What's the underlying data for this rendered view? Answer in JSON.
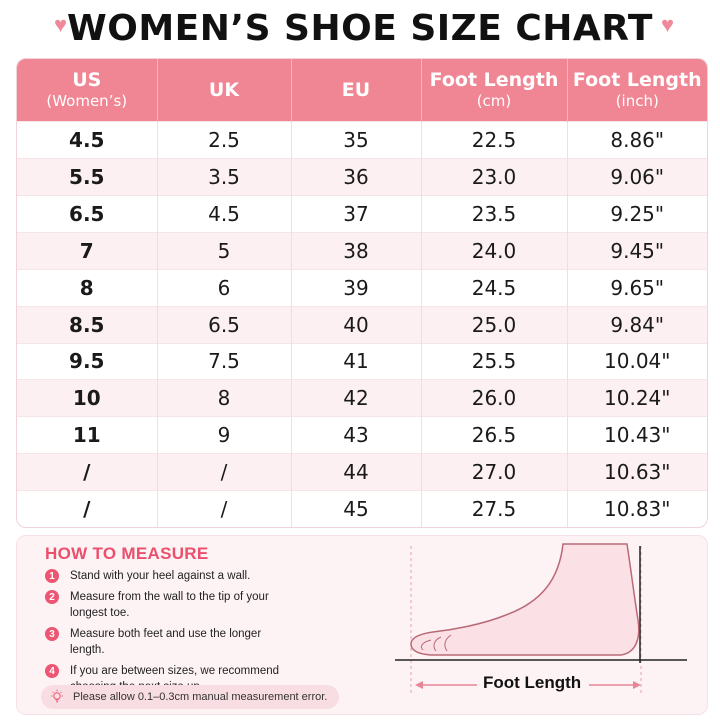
{
  "title": "WOMEN’S SHOE SIZE CHART",
  "table": {
    "headers": [
      {
        "main": "US",
        "sub": "(Women’s)"
      },
      {
        "main": "UK",
        "sub": ""
      },
      {
        "main": "EU",
        "sub": ""
      },
      {
        "main": "Foot Length",
        "sub": "(cm)"
      },
      {
        "main": "Foot Length",
        "sub": "(inch)"
      }
    ],
    "rows": [
      [
        "4.5",
        "2.5",
        "35",
        "22.5",
        "8.86\""
      ],
      [
        "5.5",
        "3.5",
        "36",
        "23.0",
        "9.06\""
      ],
      [
        "6.5",
        "4.5",
        "37",
        "23.5",
        "9.25\""
      ],
      [
        "7",
        "5",
        "38",
        "24.0",
        "9.45\""
      ],
      [
        "8",
        "6",
        "39",
        "24.5",
        "9.65\""
      ],
      [
        "8.5",
        "6.5",
        "40",
        "25.0",
        "9.84\""
      ],
      [
        "9.5",
        "7.5",
        "41",
        "25.5",
        "10.04\""
      ],
      [
        "10",
        "8",
        "42",
        "26.0",
        "10.24\""
      ],
      [
        "11",
        "9",
        "43",
        "26.5",
        "10.43\""
      ],
      [
        "/",
        "/",
        "44",
        "27.0",
        "10.63\""
      ],
      [
        "/",
        "/",
        "45",
        "27.5",
        "10.83\""
      ]
    ]
  },
  "measure": {
    "title": "HOW TO MEASURE",
    "steps": [
      {
        "num": "1",
        "text": "Stand with your heel against a wall."
      },
      {
        "num": "2",
        "text": "Measure from the wall to the tip of your longest toe."
      },
      {
        "num": "3",
        "text": "Measure both feet and use the longer length."
      },
      {
        "num": "4",
        "text": "If you are between sizes, we recommend choosing the next size up."
      }
    ],
    "note": "Please allow 0.1–0.3cm manual measurement error.",
    "diagram_label": "Foot Length"
  },
  "colors": {
    "header_pink": "#f08593",
    "accent_red": "#ec4f6c",
    "row_alt": "#fdf0f2"
  },
  "icons": [
    "heart-icon",
    "lightbulb-icon",
    "foot-illustration"
  ]
}
